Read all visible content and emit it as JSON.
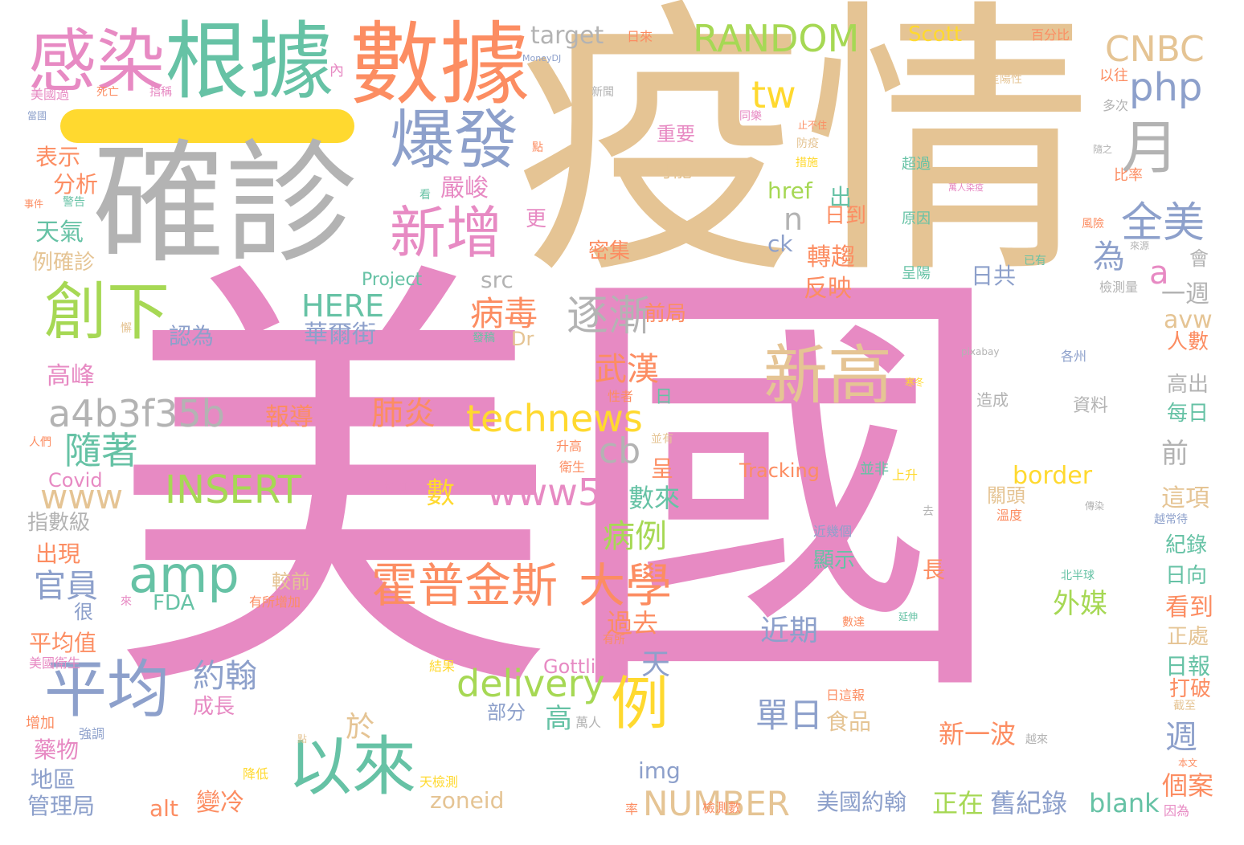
{
  "cloud": {
    "background": "#ffffff",
    "palette": {
      "pink": "#e78ac3",
      "tan": "#e5c494",
      "gray": "#b3b3b3",
      "green": "#66c2a5",
      "orange": "#fc8d62",
      "blue": "#8da0cb",
      "lime": "#a6d854",
      "yellow": "#ffd92f"
    },
    "words": [
      {
        "text": "美國",
        "color": "pink",
        "rank": 1
      },
      {
        "text": "疫情",
        "color": "tan",
        "rank": 2
      },
      {
        "text": "確診",
        "color": "gray",
        "rank": 3
      },
      {
        "text": "數據",
        "color": "orange",
        "rank": 4
      },
      {
        "text": "根據",
        "color": "green",
        "rank": 5
      },
      {
        "text": "感染",
        "color": "pink",
        "rank": 6
      },
      {
        "text": "爆發",
        "color": "blue",
        "rank": 7
      },
      {
        "text": "新增",
        "color": "pink",
        "rank": 8
      },
      {
        "text": "創下",
        "color": "lime",
        "rank": 9
      },
      {
        "text": "新高",
        "color": "tan",
        "rank": 10
      },
      {
        "text": "以來",
        "color": "green",
        "rank": 11
      },
      {
        "text": "平均",
        "color": "blue",
        "rank": 12
      },
      {
        "text": "amp",
        "color": "green",
        "rank": 13
      },
      {
        "text": "例",
        "color": "yellow",
        "rank": 14
      },
      {
        "text": "霍普金斯",
        "color": "orange",
        "rank": 15
      },
      {
        "text": "大學",
        "color": "orange",
        "rank": 16
      },
      {
        "text": "RANDOM",
        "color": "lime",
        "rank": 17
      },
      {
        "text": "月",
        "color": "gray",
        "rank": 18
      },
      {
        "text": "CNBC",
        "color": "tan",
        "rank": 19
      },
      {
        "text": "php",
        "color": "blue",
        "rank": 20
      },
      {
        "text": "tw",
        "color": "yellow",
        "rank": 21
      },
      {
        "text": "全美",
        "color": "blue",
        "rank": 22
      },
      {
        "text": "technews",
        "color": "yellow",
        "rank": 23
      },
      {
        "text": "a4b3f35b",
        "color": "gray",
        "rank": 24
      },
      {
        "text": "delivery",
        "color": "lime",
        "rank": 25
      },
      {
        "text": "INSERT",
        "color": "lime",
        "rank": 26
      },
      {
        "text": "www5",
        "color": "pink",
        "rank": 27
      },
      {
        "text": "NUMBER",
        "color": "tan",
        "rank": 28
      },
      {
        "text": "www",
        "color": "tan",
        "rank": 29
      },
      {
        "text": "逐漸",
        "color": "gray",
        "rank": 30
      },
      {
        "text": "病毒",
        "color": "orange",
        "rank": 31
      },
      {
        "text": "隨著",
        "color": "green",
        "rank": 32
      },
      {
        "text": "cb",
        "color": "gray",
        "rank": 33
      },
      {
        "text": "HERE",
        "color": "green",
        "rank": 34
      },
      {
        "text": "肺炎",
        "color": "orange",
        "rank": 35
      },
      {
        "text": "武漢",
        "color": "orange",
        "rank": 36
      },
      {
        "text": "單日",
        "color": "blue",
        "rank": 37
      },
      {
        "text": "嚴峻",
        "color": "pink",
        "rank": 38
      },
      {
        "text": "target",
        "color": "gray",
        "rank": 39
      },
      {
        "text": "Scott",
        "color": "yellow",
        "rank": 40
      },
      {
        "text": "官員",
        "color": "blue",
        "rank": 41
      },
      {
        "text": "約翰",
        "color": "blue",
        "rank": 42
      },
      {
        "text": "病例",
        "color": "lime",
        "rank": 43
      },
      {
        "text": "外媒",
        "color": "lime",
        "rank": 44
      },
      {
        "text": "近期",
        "color": "blue",
        "rank": 45
      },
      {
        "text": "新一波",
        "color": "orange",
        "rank": 46
      },
      {
        "text": "美國約翰",
        "color": "blue",
        "rank": 47
      },
      {
        "text": "正在",
        "color": "lime",
        "rank": 48
      },
      {
        "text": "舊紀錄",
        "color": "blue",
        "rank": 49
      },
      {
        "text": "blank",
        "color": "green",
        "rank": 50
      },
      {
        "text": "zoneid",
        "color": "tan",
        "rank": 51
      },
      {
        "text": "alt",
        "color": "orange",
        "rank": 52
      },
      {
        "text": "變冷",
        "color": "orange",
        "rank": 53
      },
      {
        "text": "img",
        "color": "blue",
        "rank": 54
      },
      {
        "text": "border",
        "color": "yellow",
        "rank": 55
      },
      {
        "text": "href",
        "color": "lime",
        "rank": 56
      },
      {
        "text": "ck",
        "color": "blue",
        "rank": 57
      },
      {
        "text": "src",
        "color": "gray",
        "rank": 58
      },
      {
        "text": "Gottlieb",
        "color": "pink",
        "rank": 59
      },
      {
        "text": "Tracking",
        "color": "orange",
        "rank": 60
      },
      {
        "text": "FDA",
        "color": "green",
        "rank": 61
      },
      {
        "text": "Covid",
        "color": "pink",
        "rank": 62
      },
      {
        "text": "Project",
        "color": "green",
        "rank": 63
      },
      {
        "text": "Dr",
        "color": "tan",
        "rank": 64
      },
      {
        "text": "avw",
        "color": "tan",
        "rank": 65
      },
      {
        "text": "華爾街",
        "color": "blue",
        "rank": 66
      },
      {
        "text": "報導",
        "color": "orange",
        "rank": 67
      },
      {
        "text": "認為",
        "color": "blue",
        "rank": 68
      },
      {
        "text": "高峰",
        "color": "pink",
        "rank": 69
      },
      {
        "text": "天氣",
        "color": "green",
        "rank": 70
      },
      {
        "text": "分析",
        "color": "orange",
        "rank": 71
      },
      {
        "text": "表示",
        "color": "orange",
        "rank": 72
      },
      {
        "text": "例確診",
        "color": "tan",
        "rank": 73
      },
      {
        "text": "指數級",
        "color": "gray",
        "rank": 74
      },
      {
        "text": "出現",
        "color": "orange",
        "rank": 75
      },
      {
        "text": "平均值",
        "color": "orange",
        "rank": 76
      },
      {
        "text": "藥物",
        "color": "pink",
        "rank": 77
      },
      {
        "text": "地區",
        "color": "blue",
        "rank": 78
      },
      {
        "text": "管理局",
        "color": "blue",
        "rank": 79
      },
      {
        "text": "成長",
        "color": "pink",
        "rank": 80
      },
      {
        "text": "較前",
        "color": "tan",
        "rank": 81
      },
      {
        "text": "數來",
        "color": "green",
        "rank": 82
      },
      {
        "text": "過去",
        "color": "orange",
        "rank": 83
      },
      {
        "text": "部分",
        "color": "blue",
        "rank": 84
      },
      {
        "text": "食品",
        "color": "tan",
        "rank": 85
      },
      {
        "text": "反映",
        "color": "orange",
        "rank": 86
      },
      {
        "text": "轉趨",
        "color": "orange",
        "rank": 87
      },
      {
        "text": "日到",
        "color": "orange",
        "rank": 88
      },
      {
        "text": "日共",
        "color": "blue",
        "rank": 89
      },
      {
        "text": "前局",
        "color": "orange",
        "rank": 90
      },
      {
        "text": "密集",
        "color": "orange",
        "rank": 91
      },
      {
        "text": "可能",
        "color": "tan",
        "rank": 92
      },
      {
        "text": "重要",
        "color": "pink",
        "rank": 93
      },
      {
        "text": "一週",
        "color": "gray",
        "rank": 94
      },
      {
        "text": "人數",
        "color": "orange",
        "rank": 95
      },
      {
        "text": "高出",
        "color": "gray",
        "rank": 96
      },
      {
        "text": "每日",
        "color": "green",
        "rank": 97
      },
      {
        "text": "前",
        "color": "gray",
        "rank": 98
      },
      {
        "text": "這項",
        "color": "tan",
        "rank": 99
      },
      {
        "text": "紀錄",
        "color": "green",
        "rank": 100
      },
      {
        "text": "日向",
        "color": "green",
        "rank": 101
      },
      {
        "text": "看到",
        "color": "orange",
        "rank": 102
      },
      {
        "text": "正處",
        "color": "tan",
        "rank": 103
      },
      {
        "text": "日報",
        "color": "green",
        "rank": 104
      },
      {
        "text": "打破",
        "color": "orange",
        "rank": 105
      },
      {
        "text": "週",
        "color": "blue",
        "rank": 106
      },
      {
        "text": "個案",
        "color": "orange",
        "rank": 107
      },
      {
        "text": "顯示",
        "color": "green",
        "rank": 108
      },
      {
        "text": "關頭",
        "color": "tan",
        "rank": 109
      },
      {
        "text": "資料",
        "color": "gray",
        "rank": 110
      },
      {
        "text": "造成",
        "color": "gray",
        "rank": 111
      },
      {
        "text": "為",
        "color": "blue",
        "rank": 112
      },
      {
        "text": "a",
        "color": "pink",
        "rank": 113
      },
      {
        "text": "n",
        "color": "gray",
        "rank": 114
      },
      {
        "text": "出",
        "color": "green",
        "rank": 115
      },
      {
        "text": "於",
        "color": "tan",
        "rank": 116
      },
      {
        "text": "數",
        "color": "yellow",
        "rank": 117
      },
      {
        "text": "天",
        "color": "blue",
        "rank": 118
      },
      {
        "text": "高",
        "color": "green",
        "rank": 119
      },
      {
        "text": "長",
        "color": "orange",
        "rank": 120
      },
      {
        "text": "呈",
        "color": "orange",
        "rank": 121
      },
      {
        "text": "日",
        "color": "green",
        "rank": 122
      },
      {
        "text": "更",
        "color": "pink",
        "rank": 123
      },
      {
        "text": "會",
        "color": "gray",
        "rank": 124
      },
      {
        "text": "很",
        "color": "blue",
        "rank": 125
      },
      {
        "text": "超過",
        "color": "green",
        "rank": 126
      },
      {
        "text": "原因",
        "color": "green",
        "rank": 127
      },
      {
        "text": "呈陽",
        "color": "green",
        "rank": 128
      },
      {
        "text": "比率",
        "color": "orange",
        "rank": 129
      },
      {
        "text": "以往",
        "color": "orange",
        "rank": 130
      },
      {
        "text": "多次",
        "color": "gray",
        "rank": 131
      },
      {
        "text": "百分比",
        "color": "orange",
        "rank": 132
      },
      {
        "text": "日來",
        "color": "orange",
        "rank": 133
      },
      {
        "text": "內",
        "color": "pink",
        "rank": 134
      },
      {
        "text": "美國過",
        "color": "pink",
        "rank": 135
      },
      {
        "text": "死亡",
        "color": "orange",
        "rank": 136
      },
      {
        "text": "指稱",
        "color": "pink",
        "rank": 137
      },
      {
        "text": "新聞",
        "color": "gray",
        "rank": 138
      },
      {
        "text": "當國",
        "color": "blue",
        "rank": 139
      },
      {
        "text": "呈陽性",
        "color": "tan",
        "rank": 140
      },
      {
        "text": "MoneyDJ",
        "color": "blue",
        "rank": 141
      },
      {
        "text": "同樂",
        "color": "pink",
        "rank": 142
      },
      {
        "text": "止不住",
        "color": "orange",
        "rank": 143
      },
      {
        "text": "防疫",
        "color": "tan",
        "rank": 144
      },
      {
        "text": "措施",
        "color": "yellow",
        "rank": 145
      },
      {
        "text": "萬人染疫",
        "color": "pink",
        "rank": 146
      },
      {
        "text": "隨之",
        "color": "gray",
        "rank": 147
      },
      {
        "text": "風險",
        "color": "orange",
        "rank": 148
      },
      {
        "text": "已有",
        "color": "green",
        "rank": 149
      },
      {
        "text": "來源",
        "color": "gray",
        "rank": 150
      },
      {
        "text": "檢測量",
        "color": "gray",
        "rank": 151
      },
      {
        "text": "警告",
        "color": "green",
        "rank": 152
      },
      {
        "text": "事件",
        "color": "orange",
        "rank": 153
      },
      {
        "text": "看",
        "color": "green",
        "rank": 154
      },
      {
        "text": "點",
        "color": "orange",
        "rank": 155
      },
      {
        "text": "發稿",
        "color": "green",
        "rank": 156
      },
      {
        "text": "懈",
        "color": "tan",
        "rank": 157
      },
      {
        "text": "pixabay",
        "color": "gray",
        "rank": 158
      },
      {
        "text": "各州",
        "color": "blue",
        "rank": 159
      },
      {
        "text": "寒冬",
        "color": "yellow",
        "rank": 160
      },
      {
        "text": "性者",
        "color": "orange",
        "rank": 161
      },
      {
        "text": "人們",
        "color": "orange",
        "rank": 162
      },
      {
        "text": "並有",
        "color": "tan",
        "rank": 163
      },
      {
        "text": "升高",
        "color": "orange",
        "rank": 164
      },
      {
        "text": "衛生",
        "color": "orange",
        "rank": 165
      },
      {
        "text": "檢測",
        "color": "pink",
        "rank": 166
      },
      {
        "text": "並非",
        "color": "green",
        "rank": 167
      },
      {
        "text": "上升",
        "color": "yellow",
        "rank": 168
      },
      {
        "text": "去",
        "color": "gray",
        "rank": 169
      },
      {
        "text": "溫度",
        "color": "orange",
        "rank": 170
      },
      {
        "text": "傳染",
        "color": "gray",
        "rank": 171
      },
      {
        "text": "越常待",
        "color": "blue",
        "rank": 172
      },
      {
        "text": "近幾個",
        "color": "blue",
        "rank": 173
      },
      {
        "text": "北半球",
        "color": "green",
        "rank": 174
      },
      {
        "text": "有所增加",
        "color": "orange",
        "rank": 175
      },
      {
        "text": "來",
        "color": "pink",
        "rank": 176
      },
      {
        "text": "有所",
        "color": "orange",
        "rank": 177
      },
      {
        "text": "數達",
        "color": "orange",
        "rank": 178
      },
      {
        "text": "延伸",
        "color": "green",
        "rank": 179
      },
      {
        "text": "美國衛生",
        "color": "pink",
        "rank": 180
      },
      {
        "text": "結果",
        "color": "yellow",
        "rank": 181
      },
      {
        "text": "日這報",
        "color": "orange",
        "rank": 182
      },
      {
        "text": "萬人",
        "color": "gray",
        "rank": 183
      },
      {
        "text": "截至",
        "color": "tan",
        "rank": 184
      },
      {
        "text": "越來",
        "color": "gray",
        "rank": 185
      },
      {
        "text": "增加",
        "color": "orange",
        "rank": 186
      },
      {
        "text": "強調",
        "color": "blue",
        "rank": 187
      },
      {
        "text": "本文",
        "color": "orange",
        "rank": 188
      },
      {
        "text": "點",
        "color": "tan",
        "rank": 189
      },
      {
        "text": "降低",
        "color": "yellow",
        "rank": 190
      },
      {
        "text": "天檢測",
        "color": "yellow",
        "rank": 191
      },
      {
        "text": "率",
        "color": "orange",
        "rank": 192
      },
      {
        "text": "檢測數",
        "color": "orange",
        "rank": 193
      },
      {
        "text": "因為",
        "color": "pink",
        "rank": 194
      }
    ]
  }
}
